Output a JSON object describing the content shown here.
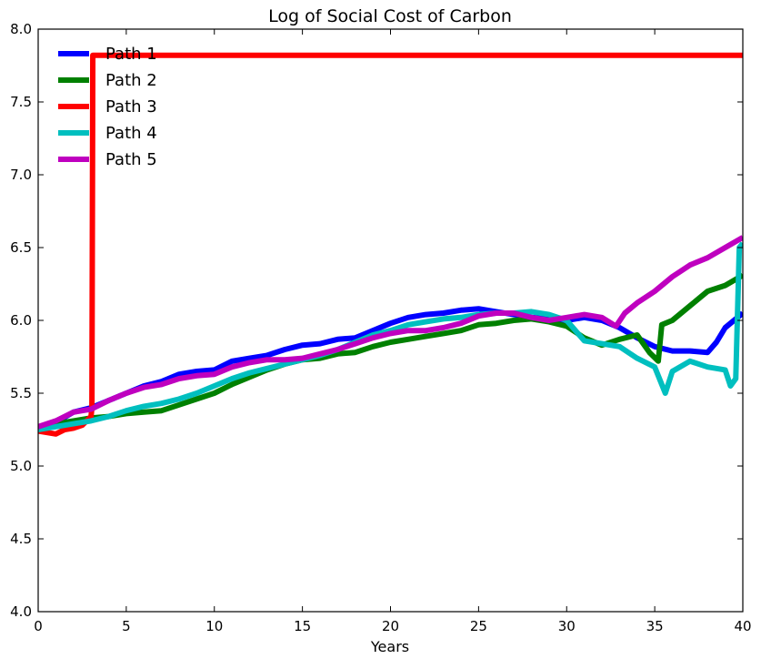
{
  "chart_data": {
    "type": "line",
    "title": "Log of Social Cost of Carbon",
    "xlabel": "Years",
    "ylabel": "",
    "xlim": [
      0,
      40
    ],
    "ylim": [
      4.0,
      8.0
    ],
    "xticks": [
      0,
      5,
      10,
      15,
      20,
      25,
      30,
      35,
      40
    ],
    "xtick_labels": [
      "0",
      "5",
      "10",
      "15",
      "20",
      "25",
      "30",
      "35",
      "40"
    ],
    "yticks": [
      4.0,
      4.5,
      5.0,
      5.5,
      6.0,
      6.5,
      7.0,
      7.5,
      8.0
    ],
    "ytick_labels": [
      "4.0",
      "4.5",
      "5.0",
      "5.5",
      "6.0",
      "6.5",
      "7.0",
      "7.5",
      "8.0"
    ],
    "grid": false,
    "legend_position": "upper-left",
    "series": [
      {
        "name": "Path 1",
        "color": "#0000ff",
        "points": [
          [
            0,
            5.26
          ],
          [
            1,
            5.3
          ],
          [
            2,
            5.37
          ],
          [
            3,
            5.4
          ],
          [
            4,
            5.45
          ],
          [
            5,
            5.5
          ],
          [
            6,
            5.55
          ],
          [
            7,
            5.58
          ],
          [
            8,
            5.63
          ],
          [
            9,
            5.65
          ],
          [
            10,
            5.66
          ],
          [
            11,
            5.72
          ],
          [
            12,
            5.74
          ],
          [
            13,
            5.76
          ],
          [
            14,
            5.8
          ],
          [
            15,
            5.83
          ],
          [
            16,
            5.84
          ],
          [
            17,
            5.87
          ],
          [
            18,
            5.88
          ],
          [
            19,
            5.93
          ],
          [
            20,
            5.98
          ],
          [
            21,
            6.02
          ],
          [
            22,
            6.04
          ],
          [
            23,
            6.05
          ],
          [
            24,
            6.07
          ],
          [
            25,
            6.08
          ],
          [
            26,
            6.06
          ],
          [
            27,
            6.04
          ],
          [
            28,
            6.02
          ],
          [
            29,
            6.01
          ],
          [
            30,
            6.0
          ],
          [
            31,
            6.02
          ],
          [
            32,
            6.0
          ],
          [
            33,
            5.95
          ],
          [
            34,
            5.88
          ],
          [
            35,
            5.82
          ],
          [
            36,
            5.79
          ],
          [
            37,
            5.79
          ],
          [
            38,
            5.78
          ],
          [
            38.5,
            5.85
          ],
          [
            39,
            5.95
          ],
          [
            40,
            6.05
          ]
        ]
      },
      {
        "name": "Path 2",
        "color": "#008000",
        "points": [
          [
            0,
            5.26
          ],
          [
            1,
            5.29
          ],
          [
            2,
            5.31
          ],
          [
            3,
            5.33
          ],
          [
            4,
            5.34
          ],
          [
            5,
            5.36
          ],
          [
            6,
            5.37
          ],
          [
            7,
            5.38
          ],
          [
            8,
            5.42
          ],
          [
            9,
            5.46
          ],
          [
            10,
            5.5
          ],
          [
            11,
            5.56
          ],
          [
            12,
            5.61
          ],
          [
            13,
            5.66
          ],
          [
            14,
            5.7
          ],
          [
            15,
            5.73
          ],
          [
            16,
            5.74
          ],
          [
            17,
            5.77
          ],
          [
            18,
            5.78
          ],
          [
            19,
            5.82
          ],
          [
            20,
            5.85
          ],
          [
            21,
            5.87
          ],
          [
            22,
            5.89
          ],
          [
            23,
            5.91
          ],
          [
            24,
            5.93
          ],
          [
            25,
            5.97
          ],
          [
            26,
            5.98
          ],
          [
            27,
            6.0
          ],
          [
            28,
            6.01
          ],
          [
            29,
            5.99
          ],
          [
            30,
            5.96
          ],
          [
            31,
            5.88
          ],
          [
            32,
            5.83
          ],
          [
            33,
            5.87
          ],
          [
            34,
            5.9
          ],
          [
            34.7,
            5.78
          ],
          [
            35.2,
            5.72
          ],
          [
            35.4,
            5.97
          ],
          [
            36,
            6.0
          ],
          [
            37,
            6.1
          ],
          [
            38,
            6.2
          ],
          [
            39,
            6.24
          ],
          [
            40,
            6.31
          ]
        ]
      },
      {
        "name": "Path 3",
        "color": "#ff0000",
        "points": [
          [
            0,
            5.24
          ],
          [
            0.5,
            5.23
          ],
          [
            1,
            5.22
          ],
          [
            1.5,
            5.25
          ],
          [
            2,
            5.26
          ],
          [
            2.5,
            5.28
          ],
          [
            3,
            5.34
          ],
          [
            3.05,
            5.4
          ],
          [
            3.1,
            7.82
          ],
          [
            40,
            7.82
          ]
        ]
      },
      {
        "name": "Path 4",
        "color": "#00bfbf",
        "points": [
          [
            0,
            5.25
          ],
          [
            1,
            5.27
          ],
          [
            2,
            5.29
          ],
          [
            3,
            5.31
          ],
          [
            4,
            5.34
          ],
          [
            5,
            5.38
          ],
          [
            6,
            5.41
          ],
          [
            7,
            5.43
          ],
          [
            8,
            5.46
          ],
          [
            9,
            5.5
          ],
          [
            10,
            5.55
          ],
          [
            11,
            5.6
          ],
          [
            12,
            5.64
          ],
          [
            13,
            5.67
          ],
          [
            14,
            5.7
          ],
          [
            15,
            5.73
          ],
          [
            16,
            5.76
          ],
          [
            17,
            5.8
          ],
          [
            18,
            5.85
          ],
          [
            19,
            5.9
          ],
          [
            20,
            5.93
          ],
          [
            21,
            5.97
          ],
          [
            22,
            5.99
          ],
          [
            23,
            6.01
          ],
          [
            24,
            6.02
          ],
          [
            25,
            6.04
          ],
          [
            26,
            6.05
          ],
          [
            27,
            6.05
          ],
          [
            28,
            6.06
          ],
          [
            29,
            6.04
          ],
          [
            30,
            6.0
          ],
          [
            31,
            5.86
          ],
          [
            32,
            5.84
          ],
          [
            33,
            5.82
          ],
          [
            34,
            5.74
          ],
          [
            35,
            5.68
          ],
          [
            35.6,
            5.5
          ],
          [
            36,
            5.65
          ],
          [
            37,
            5.72
          ],
          [
            38,
            5.68
          ],
          [
            39,
            5.66
          ],
          [
            39.3,
            5.55
          ],
          [
            39.6,
            5.6
          ],
          [
            39.8,
            6.5
          ],
          [
            40,
            6.53
          ]
        ]
      },
      {
        "name": "Path 5",
        "color": "#bf00bf",
        "points": [
          [
            0,
            5.27
          ],
          [
            1,
            5.31
          ],
          [
            2,
            5.37
          ],
          [
            3,
            5.39
          ],
          [
            4,
            5.45
          ],
          [
            5,
            5.5
          ],
          [
            6,
            5.54
          ],
          [
            7,
            5.56
          ],
          [
            8,
            5.6
          ],
          [
            9,
            5.62
          ],
          [
            10,
            5.63
          ],
          [
            11,
            5.68
          ],
          [
            12,
            5.71
          ],
          [
            13,
            5.73
          ],
          [
            14,
            5.73
          ],
          [
            15,
            5.74
          ],
          [
            16,
            5.77
          ],
          [
            17,
            5.8
          ],
          [
            18,
            5.84
          ],
          [
            19,
            5.88
          ],
          [
            20,
            5.91
          ],
          [
            21,
            5.93
          ],
          [
            22,
            5.93
          ],
          [
            23,
            5.95
          ],
          [
            24,
            5.98
          ],
          [
            25,
            6.03
          ],
          [
            26,
            6.05
          ],
          [
            27,
            6.05
          ],
          [
            28,
            6.02
          ],
          [
            29,
            6.0
          ],
          [
            30,
            6.02
          ],
          [
            31,
            6.04
          ],
          [
            32,
            6.02
          ],
          [
            32.8,
            5.96
          ],
          [
            33.3,
            6.05
          ],
          [
            34,
            6.12
          ],
          [
            35,
            6.2
          ],
          [
            36,
            6.3
          ],
          [
            37,
            6.38
          ],
          [
            38,
            6.43
          ],
          [
            39,
            6.5
          ],
          [
            40,
            6.57
          ]
        ]
      }
    ]
  }
}
